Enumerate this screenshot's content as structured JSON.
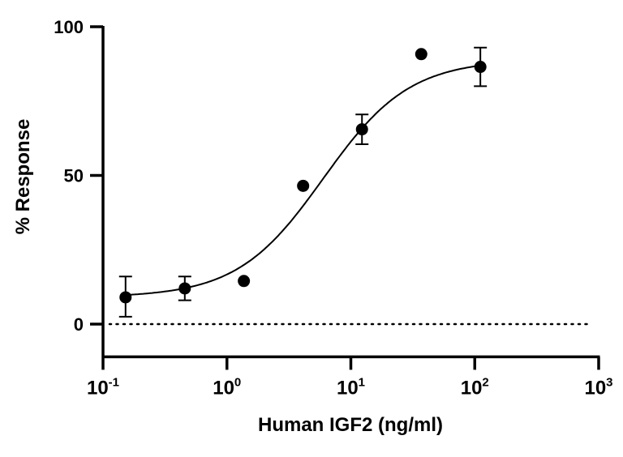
{
  "chart_data": {
    "type": "scatter",
    "xlabel": "Human IGF2 (ng/ml)",
    "ylabel": "% Response",
    "x_scale": "log",
    "xlim": [
      0.1,
      1000
    ],
    "ylim": [
      -11,
      100
    ],
    "x_ticks": [
      {
        "base": "10",
        "exp": "-1",
        "value": 0.1
      },
      {
        "base": "10",
        "exp": "0",
        "value": 1
      },
      {
        "base": "10",
        "exp": "1",
        "value": 10
      },
      {
        "base": "10",
        "exp": "2",
        "value": 100
      },
      {
        "base": "10",
        "exp": "3",
        "value": 1000
      }
    ],
    "y_ticks": [
      {
        "label": "0",
        "value": 0
      },
      {
        "label": "50",
        "value": 50
      },
      {
        "label": "100",
        "value": 100
      }
    ],
    "grid": false,
    "reference_line": {
      "y": 0,
      "style": "dotted"
    },
    "points": [
      {
        "x": 0.152,
        "y": 9,
        "err_low": 2.5,
        "err_high": 16
      },
      {
        "x": 0.457,
        "y": 12,
        "err_low": 8,
        "err_high": 16
      },
      {
        "x": 1.37,
        "y": 14.5
      },
      {
        "x": 4.12,
        "y": 46.5
      },
      {
        "x": 12.3,
        "y": 65.5,
        "err_low": 60.5,
        "err_high": 70.5
      },
      {
        "x": 37,
        "y": 90.8
      },
      {
        "x": 111,
        "y": 86.5,
        "err_low": 80,
        "err_high": 93
      }
    ],
    "fit": {
      "model": "4PL",
      "bottom": 9,
      "top": 89,
      "ec50": 6,
      "hill": 1.25
    },
    "color": "#000000"
  }
}
